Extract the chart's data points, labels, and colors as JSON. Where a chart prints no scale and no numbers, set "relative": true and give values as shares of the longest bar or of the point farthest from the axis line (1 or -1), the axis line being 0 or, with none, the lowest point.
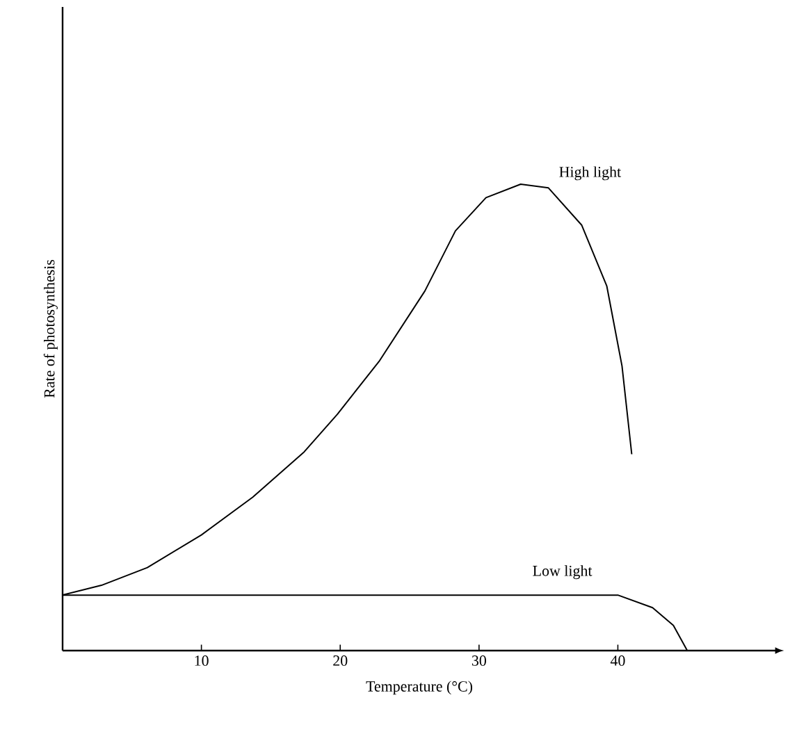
{
  "chart_data": {
    "type": "line",
    "relative": true,
    "xlabel": "Temperature (°C)",
    "ylabel": "Rate of photosynthesis",
    "xlim": [
      0,
      51.4
    ],
    "xticks": [
      10,
      20,
      30,
      40
    ],
    "marker": "none",
    "line_style": "solid",
    "series": [
      {
        "name": "High light",
        "color": "#000000",
        "x": [
          0,
          2.8,
          6.1,
          10,
          13.7,
          17.4,
          19.8,
          22.8,
          26.1,
          28.3,
          30.5,
          33,
          35,
          37.4,
          39.2,
          40.3,
          41
        ],
        "values": [
          0.119,
          0.14,
          0.178,
          0.248,
          0.329,
          0.426,
          0.507,
          0.62,
          0.771,
          0.9,
          0.971,
          1,
          0.992,
          0.912,
          0.782,
          0.61,
          0.421
        ]
      },
      {
        "name": "Low light",
        "color": "#000000",
        "x": [
          0,
          10,
          20,
          30,
          40,
          42.5,
          44,
          45
        ],
        "values": [
          0.119,
          0.119,
          0.119,
          0.119,
          0.119,
          0.092,
          0.054,
          0
        ]
      }
    ]
  }
}
